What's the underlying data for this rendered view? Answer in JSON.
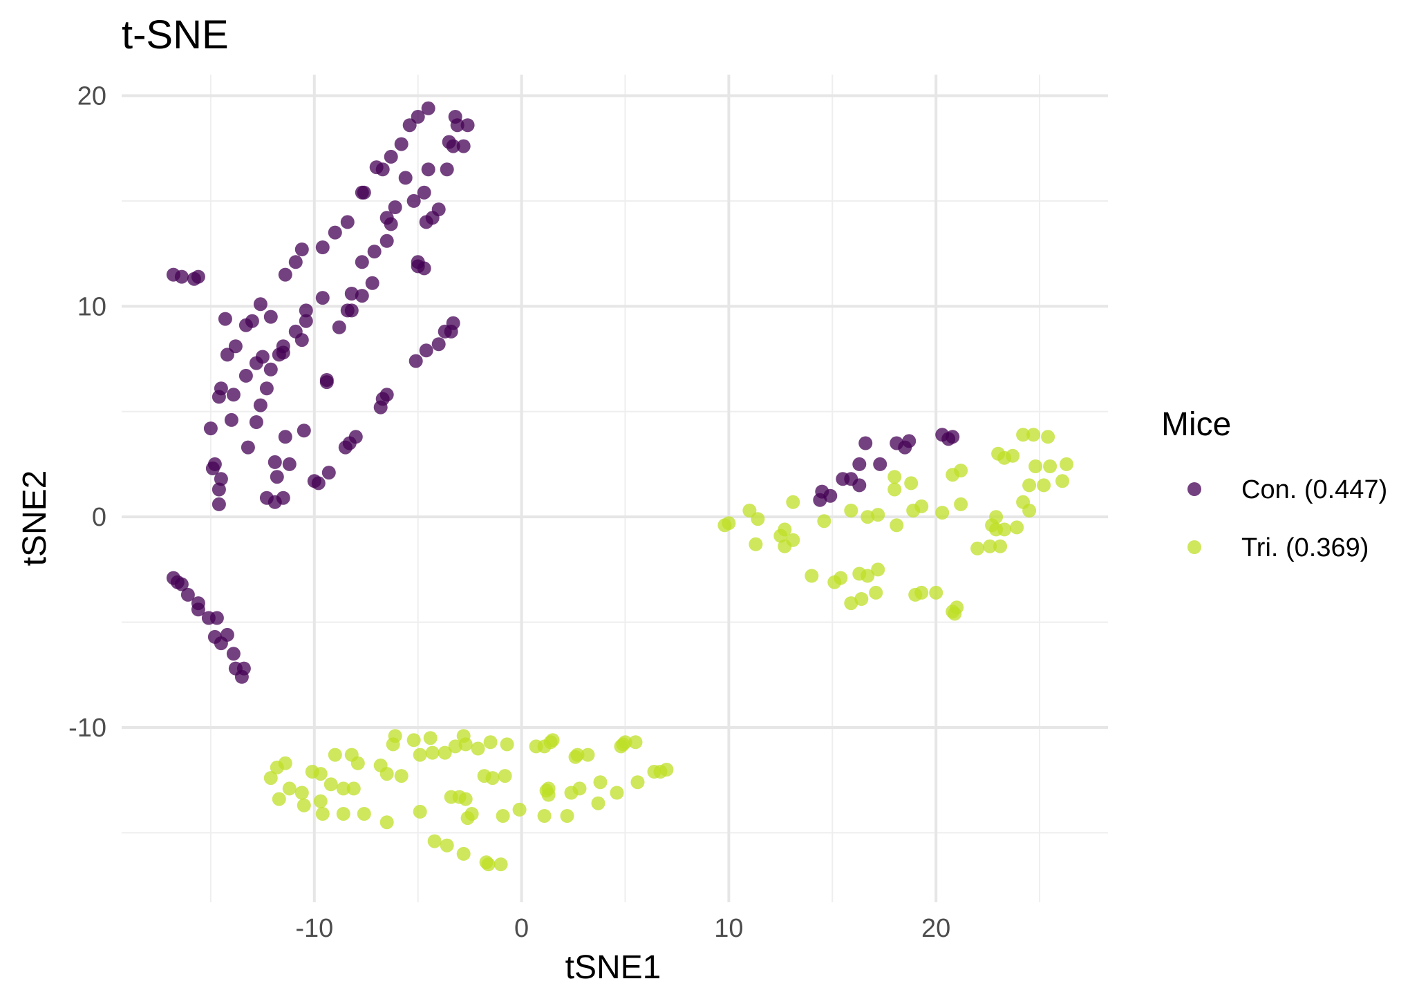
{
  "chart_data": {
    "type": "scatter",
    "title": "t-SNE",
    "xlabel": "tSNE1",
    "ylabel": "tSNE2",
    "xlim": [
      -19.3,
      28.3
    ],
    "ylim": [
      -18.3,
      21.0
    ],
    "x_ticks": [
      -10,
      0,
      10,
      20
    ],
    "y_ticks": [
      -10,
      0,
      10,
      20
    ],
    "grid": true,
    "legend": {
      "title": "Mice",
      "position": "right",
      "entries": [
        "Con. (0.447)",
        "Tri. (0.369)"
      ]
    },
    "series": [
      {
        "name": "Con. (0.447)",
        "color": "#440154",
        "opacity": 0.75,
        "points": [
          [
            -16.8,
            11.5
          ],
          [
            -16.4,
            11.4
          ],
          [
            -15.8,
            11.3
          ],
          [
            -15.6,
            11.4
          ],
          [
            -14.3,
            9.4
          ],
          [
            -14.2,
            7.7
          ],
          [
            -13.8,
            8.1
          ],
          [
            -13.3,
            9.1
          ],
          [
            -13.0,
            9.3
          ],
          [
            -12.6,
            10.1
          ],
          [
            -12.1,
            9.5
          ],
          [
            -11.4,
            11.5
          ],
          [
            -10.9,
            12.1
          ],
          [
            -10.6,
            12.7
          ],
          [
            -9.6,
            12.8
          ],
          [
            -9.0,
            13.5
          ],
          [
            -8.4,
            14.0
          ],
          [
            -7.7,
            15.4
          ],
          [
            -7.0,
            16.6
          ],
          [
            -6.7,
            16.5
          ],
          [
            -6.3,
            17.1
          ],
          [
            -5.8,
            17.7
          ],
          [
            -5.4,
            18.6
          ],
          [
            -5.0,
            19.0
          ],
          [
            -4.5,
            19.4
          ],
          [
            -3.2,
            19.0
          ],
          [
            -3.1,
            18.6
          ],
          [
            -2.6,
            18.6
          ],
          [
            -3.5,
            17.8
          ],
          [
            -3.3,
            17.6
          ],
          [
            -2.8,
            17.6
          ],
          [
            -3.6,
            16.5
          ],
          [
            -4.5,
            16.5
          ],
          [
            -5.6,
            16.1
          ],
          [
            -7.6,
            15.4
          ],
          [
            -6.5,
            14.2
          ],
          [
            -6.1,
            14.7
          ],
          [
            -5.2,
            15.0
          ],
          [
            -4.7,
            15.4
          ],
          [
            -4.3,
            14.2
          ],
          [
            -4.6,
            14.0
          ],
          [
            -4.0,
            14.6
          ],
          [
            -6.3,
            13.9
          ],
          [
            -6.5,
            13.1
          ],
          [
            -7.1,
            12.6
          ],
          [
            -7.7,
            12.1
          ],
          [
            -5.0,
            12.1
          ],
          [
            -5.0,
            11.9
          ],
          [
            -4.7,
            11.8
          ],
          [
            -7.2,
            11.1
          ],
          [
            -8.2,
            10.6
          ],
          [
            -7.7,
            10.5
          ],
          [
            -9.6,
            10.4
          ],
          [
            -10.4,
            9.8
          ],
          [
            -10.4,
            9.3
          ],
          [
            -10.9,
            8.8
          ],
          [
            -10.6,
            8.4
          ],
          [
            -11.5,
            7.8
          ],
          [
            -11.5,
            8.1
          ],
          [
            -12.5,
            7.6
          ],
          [
            -12.1,
            7.0
          ],
          [
            -12.8,
            7.3
          ],
          [
            -13.3,
            6.7
          ],
          [
            -14.5,
            6.1
          ],
          [
            -14.6,
            5.7
          ],
          [
            -13.9,
            5.8
          ],
          [
            -12.6,
            5.3
          ],
          [
            -12.3,
            6.1
          ],
          [
            -11.7,
            7.7
          ],
          [
            -8.2,
            9.8
          ],
          [
            -8.4,
            9.8
          ],
          [
            -8.8,
            9.0
          ],
          [
            -9.4,
            6.5
          ],
          [
            -9.4,
            6.4
          ],
          [
            -3.7,
            8.8
          ],
          [
            -3.4,
            8.8
          ],
          [
            -3.3,
            9.2
          ],
          [
            -4.0,
            8.2
          ],
          [
            -4.6,
            7.9
          ],
          [
            -5.1,
            7.4
          ],
          [
            -6.5,
            5.8
          ],
          [
            -6.7,
            5.6
          ],
          [
            -6.8,
            5.2
          ],
          [
            -14.0,
            4.6
          ],
          [
            -15.0,
            4.2
          ],
          [
            -12.8,
            4.5
          ],
          [
            -11.4,
            3.8
          ],
          [
            -10.5,
            4.1
          ],
          [
            -8.0,
            3.8
          ],
          [
            -8.3,
            3.5
          ],
          [
            -8.5,
            3.3
          ],
          [
            -13.2,
            3.3
          ],
          [
            -14.8,
            2.5
          ],
          [
            -14.9,
            2.3
          ],
          [
            -14.5,
            1.8
          ],
          [
            -14.6,
            1.3
          ],
          [
            -14.6,
            0.6
          ],
          [
            -11.9,
            2.6
          ],
          [
            -11.2,
            2.5
          ],
          [
            -11.8,
            1.9
          ],
          [
            -10.0,
            1.7
          ],
          [
            -9.8,
            1.6
          ],
          [
            -9.3,
            2.1
          ],
          [
            -12.3,
            0.9
          ],
          [
            -11.9,
            0.7
          ],
          [
            -11.5,
            0.9
          ],
          [
            -16.8,
            -2.9
          ],
          [
            -16.6,
            -3.1
          ],
          [
            -16.4,
            -3.2
          ],
          [
            -16.1,
            -3.7
          ],
          [
            -15.6,
            -4.1
          ],
          [
            -15.6,
            -4.4
          ],
          [
            -15.1,
            -4.8
          ],
          [
            -14.7,
            -4.8
          ],
          [
            -14.2,
            -5.6
          ],
          [
            -14.8,
            -5.7
          ],
          [
            -14.5,
            -6.0
          ],
          [
            -13.9,
            -6.5
          ],
          [
            -13.8,
            -7.2
          ],
          [
            -13.4,
            -7.2
          ],
          [
            -13.5,
            -7.6
          ],
          [
            14.4,
            0.8
          ],
          [
            14.5,
            1.2
          ],
          [
            14.9,
            1.0
          ],
          [
            15.5,
            1.8
          ],
          [
            15.9,
            1.8
          ],
          [
            16.3,
            2.5
          ],
          [
            16.3,
            1.5
          ],
          [
            16.6,
            3.5
          ],
          [
            17.3,
            2.5
          ],
          [
            18.1,
            3.5
          ],
          [
            18.5,
            3.3
          ],
          [
            18.7,
            3.6
          ],
          [
            20.3,
            3.9
          ],
          [
            20.6,
            3.7
          ],
          [
            20.8,
            3.8
          ]
        ]
      },
      {
        "name": "Tri. (0.369)",
        "color": "#bddf26",
        "opacity": 0.75,
        "points": [
          [
            9.8,
            -0.4
          ],
          [
            10.0,
            -0.3
          ],
          [
            11.0,
            0.3
          ],
          [
            11.4,
            -0.1
          ],
          [
            11.3,
            -1.3
          ],
          [
            12.7,
            -0.6
          ],
          [
            12.5,
            -0.9
          ],
          [
            12.7,
            -1.4
          ],
          [
            13.1,
            -1.1
          ],
          [
            13.1,
            0.7
          ],
          [
            14.6,
            -0.2
          ],
          [
            15.9,
            0.3
          ],
          [
            16.7,
            0.0
          ],
          [
            17.2,
            0.1
          ],
          [
            18.1,
            -0.4
          ],
          [
            18.9,
            0.3
          ],
          [
            19.3,
            0.5
          ],
          [
            20.3,
            0.2
          ],
          [
            21.2,
            0.6
          ],
          [
            18.0,
            1.3
          ],
          [
            18.0,
            1.9
          ],
          [
            18.8,
            1.6
          ],
          [
            20.8,
            2.0
          ],
          [
            21.2,
            2.2
          ],
          [
            14.0,
            -2.8
          ],
          [
            15.1,
            -3.1
          ],
          [
            15.4,
            -2.9
          ],
          [
            16.3,
            -2.7
          ],
          [
            16.7,
            -2.8
          ],
          [
            17.2,
            -2.5
          ],
          [
            15.9,
            -4.1
          ],
          [
            16.4,
            -3.9
          ],
          [
            17.1,
            -3.6
          ],
          [
            19.0,
            -3.7
          ],
          [
            19.3,
            -3.6
          ],
          [
            20.0,
            -3.6
          ],
          [
            20.8,
            -4.5
          ],
          [
            20.9,
            -4.6
          ],
          [
            21.0,
            -4.3
          ],
          [
            22.0,
            -1.5
          ],
          [
            22.6,
            -1.4
          ],
          [
            23.1,
            -1.4
          ],
          [
            22.9,
            -0.6
          ],
          [
            22.7,
            -0.4
          ],
          [
            22.9,
            0.0
          ],
          [
            23.3,
            -0.6
          ],
          [
            23.9,
            -0.5
          ],
          [
            24.5,
            0.3
          ],
          [
            24.2,
            0.7
          ],
          [
            24.5,
            1.5
          ],
          [
            25.2,
            1.5
          ],
          [
            25.5,
            2.4
          ],
          [
            26.1,
            1.7
          ],
          [
            26.3,
            2.5
          ],
          [
            23.0,
            3.0
          ],
          [
            23.3,
            2.8
          ],
          [
            23.7,
            2.9
          ],
          [
            24.2,
            3.9
          ],
          [
            24.7,
            3.9
          ],
          [
            25.4,
            3.8
          ],
          [
            24.8,
            2.4
          ],
          [
            -12.1,
            -12.4
          ],
          [
            -11.8,
            -11.9
          ],
          [
            -11.4,
            -11.7
          ],
          [
            -11.7,
            -13.4
          ],
          [
            -11.2,
            -12.9
          ],
          [
            -10.6,
            -13.1
          ],
          [
            -10.5,
            -13.7
          ],
          [
            -10.1,
            -12.1
          ],
          [
            -9.7,
            -12.2
          ],
          [
            -9.7,
            -13.5
          ],
          [
            -9.6,
            -14.1
          ],
          [
            -9.2,
            -12.7
          ],
          [
            -9.0,
            -11.3
          ],
          [
            -8.6,
            -12.9
          ],
          [
            -8.6,
            -14.1
          ],
          [
            -8.2,
            -11.3
          ],
          [
            -8.1,
            -12.9
          ],
          [
            -7.9,
            -11.7
          ],
          [
            -7.6,
            -14.1
          ],
          [
            -6.8,
            -11.8
          ],
          [
            -6.5,
            -12.2
          ],
          [
            -6.5,
            -14.5
          ],
          [
            -6.1,
            -10.4
          ],
          [
            -6.2,
            -10.8
          ],
          [
            -5.8,
            -12.3
          ],
          [
            -5.2,
            -10.6
          ],
          [
            -4.9,
            -11.3
          ],
          [
            -4.9,
            -14.0
          ],
          [
            -4.4,
            -10.5
          ],
          [
            -4.3,
            -11.2
          ],
          [
            -4.2,
            -15.4
          ],
          [
            -3.7,
            -11.2
          ],
          [
            -3.6,
            -15.6
          ],
          [
            -3.4,
            -13.3
          ],
          [
            -3.2,
            -10.9
          ],
          [
            -3.0,
            -13.3
          ],
          [
            -2.8,
            -16.0
          ],
          [
            -2.8,
            -10.4
          ],
          [
            -2.7,
            -10.8
          ],
          [
            -2.7,
            -13.4
          ],
          [
            -2.6,
            -14.3
          ],
          [
            -2.4,
            -14.1
          ],
          [
            -2.1,
            -11.0
          ],
          [
            -1.8,
            -12.3
          ],
          [
            -1.7,
            -16.4
          ],
          [
            -1.6,
            -16.5
          ],
          [
            -1.5,
            -10.7
          ],
          [
            -1.4,
            -12.4
          ],
          [
            -1.0,
            -16.5
          ],
          [
            -0.9,
            -14.2
          ],
          [
            -0.8,
            -12.3
          ],
          [
            -0.7,
            -10.8
          ],
          [
            -0.1,
            -13.9
          ],
          [
            0.7,
            -10.9
          ],
          [
            1.1,
            -10.9
          ],
          [
            1.1,
            -14.2
          ],
          [
            1.2,
            -13.0
          ],
          [
            1.3,
            -12.9
          ],
          [
            1.3,
            -13.2
          ],
          [
            1.4,
            -10.7
          ],
          [
            1.5,
            -10.6
          ],
          [
            2.2,
            -14.2
          ],
          [
            2.4,
            -13.1
          ],
          [
            2.6,
            -11.4
          ],
          [
            2.7,
            -11.3
          ],
          [
            2.8,
            -12.9
          ],
          [
            3.2,
            -11.3
          ],
          [
            3.7,
            -13.6
          ],
          [
            3.8,
            -12.6
          ],
          [
            4.6,
            -13.1
          ],
          [
            4.8,
            -10.9
          ],
          [
            5.0,
            -10.7
          ],
          [
            5.5,
            -10.7
          ],
          [
            5.6,
            -12.6
          ],
          [
            6.4,
            -12.1
          ],
          [
            6.7,
            -12.1
          ],
          [
            7.0,
            -12.0
          ],
          [
            4.9,
            -10.8
          ]
        ]
      }
    ]
  }
}
